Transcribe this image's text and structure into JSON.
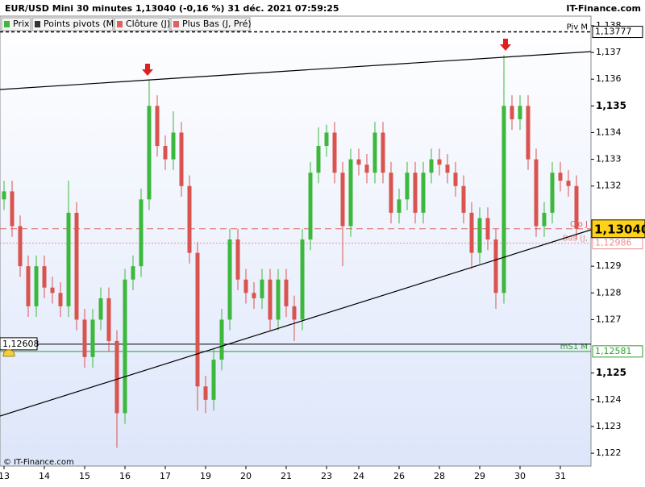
{
  "header": {
    "title": "EUR/USD Mini 30 minutes 1,13040 (-0,16 %) 31 déc. 2021 07:59:25",
    "site": "IT-Finance.com"
  },
  "legend": [
    "Prix",
    "Points pivots (M)",
    "Clôture (J)",
    "Plus Bas (J, Pré)"
  ],
  "footer": "© IT-Finance.com",
  "chart_data": {
    "type": "candlestick",
    "categories": [
      "13",
      null,
      null,
      null,
      null,
      "14",
      null,
      null,
      null,
      null,
      "15",
      null,
      null,
      null,
      null,
      "16",
      null,
      null,
      null,
      null,
      "17",
      null,
      null,
      null,
      null,
      "19",
      null,
      null,
      null,
      null,
      "20",
      null,
      null,
      null,
      null,
      "21",
      null,
      null,
      null,
      null,
      "23",
      null,
      null,
      null,
      "24",
      null,
      null,
      null,
      null,
      "26",
      null,
      null,
      null,
      null,
      "28",
      null,
      null,
      null,
      null,
      "29",
      null,
      null,
      null,
      null,
      "30",
      null,
      null,
      null,
      null,
      "31",
      null,
      null
    ],
    "open": [
      1.1315,
      1.1318,
      1.1305,
      1.129,
      1.1275,
      1.129,
      1.1282,
      1.128,
      1.1275,
      1.131,
      1.127,
      1.1256,
      1.127,
      1.1278,
      1.1262,
      1.1235,
      1.1285,
      1.129,
      1.1315,
      1.135,
      1.1335,
      1.133,
      1.134,
      1.132,
      1.1295,
      1.1245,
      1.124,
      1.1255,
      1.127,
      1.13,
      1.1285,
      1.128,
      1.1278,
      1.1285,
      1.127,
      1.1285,
      1.1275,
      1.127,
      1.13,
      1.1325,
      1.1335,
      1.134,
      1.1325,
      1.1305,
      1.133,
      1.1328,
      1.1325,
      1.134,
      1.1325,
      1.131,
      1.1315,
      1.1325,
      1.131,
      1.1325,
      1.133,
      1.1328,
      1.1325,
      1.132,
      1.131,
      1.1295,
      1.1308,
      1.13,
      1.128,
      1.135,
      1.1345,
      1.135,
      1.133,
      1.1305,
      1.131,
      1.1325,
      1.1322,
      1.132
    ],
    "high": [
      1.1322,
      1.1322,
      1.1309,
      1.1294,
      1.1294,
      1.1294,
      1.1286,
      1.1284,
      1.1322,
      1.1314,
      1.1274,
      1.1274,
      1.1282,
      1.1282,
      1.1266,
      1.1289,
      1.1294,
      1.1319,
      1.136,
      1.1354,
      1.1339,
      1.1348,
      1.1344,
      1.1324,
      1.1299,
      1.1249,
      1.1259,
      1.1274,
      1.1304,
      1.1304,
      1.1289,
      1.1284,
      1.1289,
      1.1289,
      1.1289,
      1.1289,
      1.1279,
      1.1304,
      1.1329,
      1.1342,
      1.1343,
      1.1344,
      1.1329,
      1.1334,
      1.1334,
      1.1332,
      1.1344,
      1.1344,
      1.1329,
      1.1319,
      1.1329,
      1.1329,
      1.1329,
      1.1334,
      1.1334,
      1.1332,
      1.1329,
      1.1324,
      1.1314,
      1.1312,
      1.1312,
      1.1304,
      1.1369,
      1.1354,
      1.1354,
      1.1354,
      1.1334,
      1.1314,
      1.1329,
      1.1329,
      1.1326,
      1.1324
    ],
    "low": [
      1.1311,
      1.1301,
      1.1286,
      1.1271,
      1.1271,
      1.1278,
      1.1276,
      1.1271,
      1.1271,
      1.1266,
      1.1252,
      1.1252,
      1.1266,
      1.1258,
      1.1222,
      1.1231,
      1.1281,
      1.1286,
      1.1311,
      1.1331,
      1.1326,
      1.1326,
      1.1316,
      1.1291,
      1.1236,
      1.1235,
      1.1236,
      1.1251,
      1.1266,
      1.1281,
      1.1276,
      1.1274,
      1.1274,
      1.1266,
      1.1266,
      1.1271,
      1.1262,
      1.1266,
      1.1296,
      1.1321,
      1.1331,
      1.1321,
      1.129,
      1.1301,
      1.1324,
      1.1321,
      1.1321,
      1.1321,
      1.1306,
      1.1306,
      1.1311,
      1.1306,
      1.1306,
      1.1321,
      1.1324,
      1.1321,
      1.1316,
      1.1306,
      1.1289,
      1.1291,
      1.1296,
      1.1274,
      1.1276,
      1.1341,
      1.1341,
      1.1326,
      1.1301,
      1.1301,
      1.1306,
      1.1318,
      1.1316,
      1.13
    ],
    "close": [
      1.1318,
      1.1305,
      1.129,
      1.1275,
      1.129,
      1.1282,
      1.128,
      1.1275,
      1.131,
      1.127,
      1.1256,
      1.127,
      1.1278,
      1.1262,
      1.1235,
      1.1285,
      1.129,
      1.1315,
      1.135,
      1.1335,
      1.133,
      1.134,
      1.132,
      1.1295,
      1.1245,
      1.124,
      1.1255,
      1.127,
      1.13,
      1.1285,
      1.128,
      1.1278,
      1.1285,
      1.127,
      1.1285,
      1.1275,
      1.127,
      1.13,
      1.1325,
      1.1335,
      1.134,
      1.1325,
      1.1305,
      1.133,
      1.1328,
      1.1325,
      1.134,
      1.1325,
      1.131,
      1.1315,
      1.1325,
      1.131,
      1.1325,
      1.133,
      1.1328,
      1.1325,
      1.132,
      1.131,
      1.1295,
      1.1308,
      1.13,
      1.128,
      1.135,
      1.1345,
      1.135,
      1.133,
      1.1305,
      1.131,
      1.1325,
      1.1322,
      1.132,
      1.1304
    ],
    "up_color": "#3cb83c",
    "down_color": "#d9534f",
    "ylim": [
      1.12152,
      1.13836
    ],
    "yticks": [
      {
        "value": 1.138,
        "label": "1,138"
      },
      {
        "value": 1.137,
        "label": "1,137"
      },
      {
        "value": 1.136,
        "label": "1,136"
      },
      {
        "value": 1.135,
        "label": "1,135"
      },
      {
        "value": 1.134,
        "label": "1,134"
      },
      {
        "value": 1.133,
        "label": "1,133"
      },
      {
        "value": 1.132,
        "label": "1,132"
      },
      {
        "value": 1.129,
        "label": "1,129"
      },
      {
        "value": 1.128,
        "label": "1,128"
      },
      {
        "value": 1.127,
        "label": "1,127"
      },
      {
        "value": 1.125,
        "label": "1,125"
      },
      {
        "value": 1.124,
        "label": "1,124"
      },
      {
        "value": 1.123,
        "label": "1,123"
      },
      {
        "value": 1.122,
        "label": "1,122"
      }
    ],
    "levels": [
      {
        "name": "Piv M",
        "value": 1.13777,
        "label": "1,13777",
        "color": "#000000",
        "dash": "4,3"
      },
      {
        "name": "Clo J",
        "value": 1.1304,
        "label": "1,13040",
        "color": "#e06060",
        "dash": "8,5"
      },
      {
        "name": "Bas (J,",
        "value": 1.12986,
        "label": "1,12986",
        "color": "#e89090",
        "dash": "2,2"
      },
      {
        "name": "mS1 M",
        "value": 1.12581,
        "label": "1,12581",
        "color": "#2e9e2e",
        "dash": ""
      }
    ],
    "cursor": {
      "value": 1.12608,
      "label": "1,12608"
    },
    "last": {
      "value": 1.1304,
      "label": "1,13040"
    }
  }
}
